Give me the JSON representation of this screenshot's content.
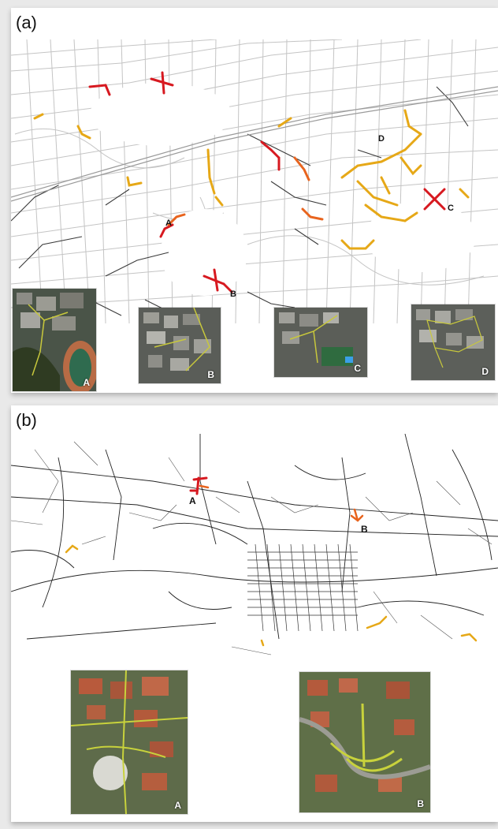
{
  "figure": {
    "panel_a": {
      "label": "(a)",
      "map_labels": [
        "A",
        "B",
        "C",
        "D"
      ],
      "thumbnails": [
        {
          "label": "A"
        },
        {
          "label": "B"
        },
        {
          "label": "C"
        },
        {
          "label": "D"
        }
      ]
    },
    "panel_b": {
      "label": "(b)",
      "map_labels": [
        "A",
        "B"
      ],
      "thumbnails": [
        {
          "label": "A"
        },
        {
          "label": "B"
        }
      ]
    }
  },
  "colors": {
    "road_light": "#bdbdbd",
    "road_dark": "#444444",
    "highlight_red": "#d71920",
    "highlight_orange": "#e8641e",
    "highlight_yellow": "#e6a817",
    "aerial_outline": "#c8c83c"
  }
}
